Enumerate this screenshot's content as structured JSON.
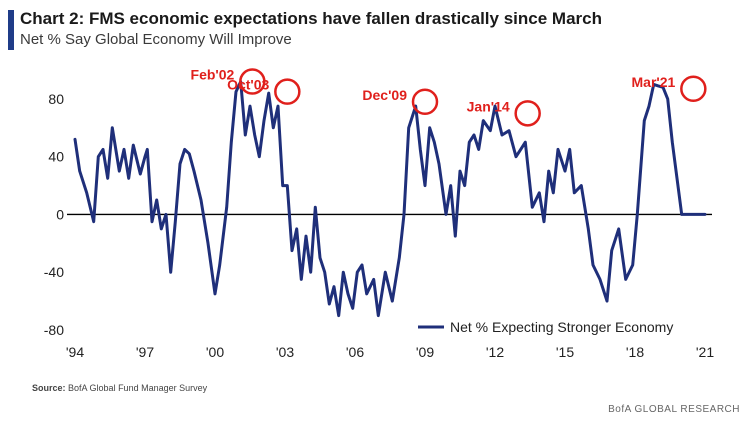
{
  "header": {
    "title": "Chart 2: FMS economic expectations have fallen drastically since March",
    "subtitle": "Net % Say Global Economy Will Improve"
  },
  "footer": {
    "source_label": "Source:",
    "source_text": "BofA Global Fund Manager Survey",
    "brand": "BofA GLOBAL RESEARCH"
  },
  "colors": {
    "line": "#1f2f7a",
    "annotation": "#e0201c",
    "axis": "#000000",
    "accent_bar": "#1f3c88"
  },
  "chart_data": {
    "type": "line",
    "title": "Chart 2: FMS economic expectations have fallen drastically since March",
    "subtitle": "Net % Say Global Economy Will Improve",
    "xlabel": "",
    "ylabel": "",
    "xlim": [
      1994.0,
      2021.3
    ],
    "ylim": [
      -80,
      100
    ],
    "x_ticks": [
      "'94",
      "'97",
      "'00",
      "'03",
      "'06",
      "'09",
      "'12",
      "'15",
      "'18",
      "'21"
    ],
    "x_tick_values": [
      1994,
      1997,
      2000,
      2003,
      2006,
      2009,
      2012,
      2015,
      2018,
      2021
    ],
    "y_ticks": [
      80,
      40,
      0,
      -40,
      -80
    ],
    "grid": false,
    "legend_position": "bottom-right",
    "series": [
      {
        "name": "Net % Expecting Stronger Economy",
        "x": [
          1994.0,
          1994.2,
          1994.5,
          1994.8,
          1995.0,
          1995.2,
          1995.4,
          1995.6,
          1995.9,
          1996.1,
          1996.3,
          1996.5,
          1996.8,
          1997.0,
          1997.1,
          1997.3,
          1997.5,
          1997.7,
          1997.9,
          1998.1,
          1998.3,
          1998.5,
          1998.7,
          1998.9,
          1999.1,
          1999.4,
          1999.7,
          2000.0,
          2000.2,
          2000.5,
          2000.7,
          2000.9,
          2001.1,
          2001.3,
          2001.5,
          2001.7,
          2001.9,
          2002.1,
          2002.3,
          2002.5,
          2002.7,
          2002.9,
          2003.1,
          2003.3,
          2003.5,
          2003.7,
          2003.9,
          2004.1,
          2004.3,
          2004.5,
          2004.7,
          2004.9,
          2005.1,
          2005.3,
          2005.5,
          2005.7,
          2005.9,
          2006.1,
          2006.3,
          2006.5,
          2006.8,
          2007.0,
          2007.3,
          2007.6,
          2007.9,
          2008.1,
          2008.3,
          2008.6,
          2008.8,
          2009.0,
          2009.2,
          2009.4,
          2009.6,
          2009.9,
          2010.1,
          2010.3,
          2010.5,
          2010.7,
          2010.9,
          2011.1,
          2011.3,
          2011.5,
          2011.8,
          2012.0,
          2012.3,
          2012.6,
          2012.9,
          2013.1,
          2013.3,
          2013.6,
          2013.9,
          2014.1,
          2014.3,
          2014.5,
          2014.7,
          2015.0,
          2015.2,
          2015.4,
          2015.7,
          2016.0,
          2016.2,
          2016.5,
          2016.8,
          2017.0,
          2017.3,
          2017.6,
          2017.9,
          2018.1,
          2018.4,
          2018.6,
          2018.8,
          2019.0,
          2019.2,
          2019.4,
          2019.6,
          2019.8,
          2020.0,
          2020.2,
          2020.4,
          2020.6,
          2020.8,
          2021.0,
          2021.1,
          2021.3
        ],
        "values": [
          52,
          30,
          15,
          -5,
          40,
          45,
          25,
          60,
          30,
          45,
          25,
          48,
          28,
          40,
          45,
          -5,
          10,
          -10,
          0,
          -40,
          -5,
          35,
          45,
          42,
          30,
          10,
          -20,
          -55,
          -35,
          5,
          50,
          85,
          92,
          55,
          75,
          55,
          40,
          65,
          84,
          60,
          75,
          20,
          20,
          -25,
          -10,
          -45,
          -15,
          -40,
          5,
          -30,
          -40,
          -62,
          -50,
          -70,
          -40,
          -55,
          -65,
          -40,
          -35,
          -55,
          -45,
          -70,
          -40,
          -60,
          -30,
          0,
          60,
          75,
          45,
          20,
          60,
          50,
          35,
          0,
          20,
          -15,
          30,
          20,
          50,
          55,
          45,
          65,
          58,
          75,
          55,
          58,
          40,
          45,
          50,
          5,
          15,
          -5,
          30,
          15,
          45,
          30,
          45,
          15,
          20,
          -10,
          -35,
          -45,
          -60,
          -25,
          -10,
          -45,
          -35,
          0,
          65,
          75,
          90,
          89,
          88,
          80,
          50,
          25,
          0,
          0,
          0,
          0,
          0,
          0,
          0,
          0
        ]
      }
    ],
    "annotations": [
      {
        "label": "Feb'02",
        "x": 2001.6,
        "y": 92
      },
      {
        "label": "Oct'03",
        "x": 2003.1,
        "y": 85
      },
      {
        "label": "Dec'09",
        "x": 2009.0,
        "y": 78
      },
      {
        "label": "Jan'14",
        "x": 2013.4,
        "y": 70
      },
      {
        "label": "Mar'21",
        "x": 2020.5,
        "y": 87
      }
    ]
  }
}
